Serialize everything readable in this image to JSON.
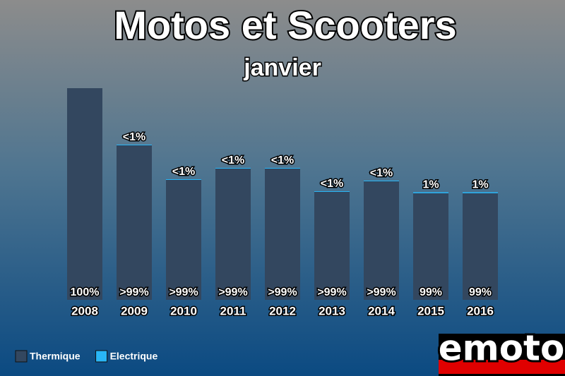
{
  "chart_data": {
    "type": "stacked_bar",
    "title": "Motos et Scooters",
    "subtitle": "janvier",
    "categories": [
      "2008",
      "2009",
      "2010",
      "2011",
      "2012",
      "2013",
      "2014",
      "2015",
      "2016"
    ],
    "series": [
      {
        "name": "Thermique",
        "color": "#33475f",
        "values": [
          300,
          219,
          170,
          186,
          186,
          153,
          168,
          151,
          151
        ],
        "value_labels": [
          "100%",
          ">99%",
          ">99%",
          ">99%",
          ">99%",
          ">99%",
          ">99%",
          "99%",
          "99%"
        ]
      },
      {
        "name": "Electrique",
        "color": "#29b6f6",
        "values": [
          0,
          1,
          1,
          1,
          1,
          1,
          1,
          1.5,
          1.5
        ],
        "value_labels": [
          null,
          "<1%",
          "<1%",
          "<1%",
          "<1%",
          "<1%",
          "<1%",
          "1%",
          "1%"
        ]
      }
    ],
    "ylim": [
      0,
      300
    ],
    "legend": "bottom-left",
    "logo": "emoto"
  }
}
